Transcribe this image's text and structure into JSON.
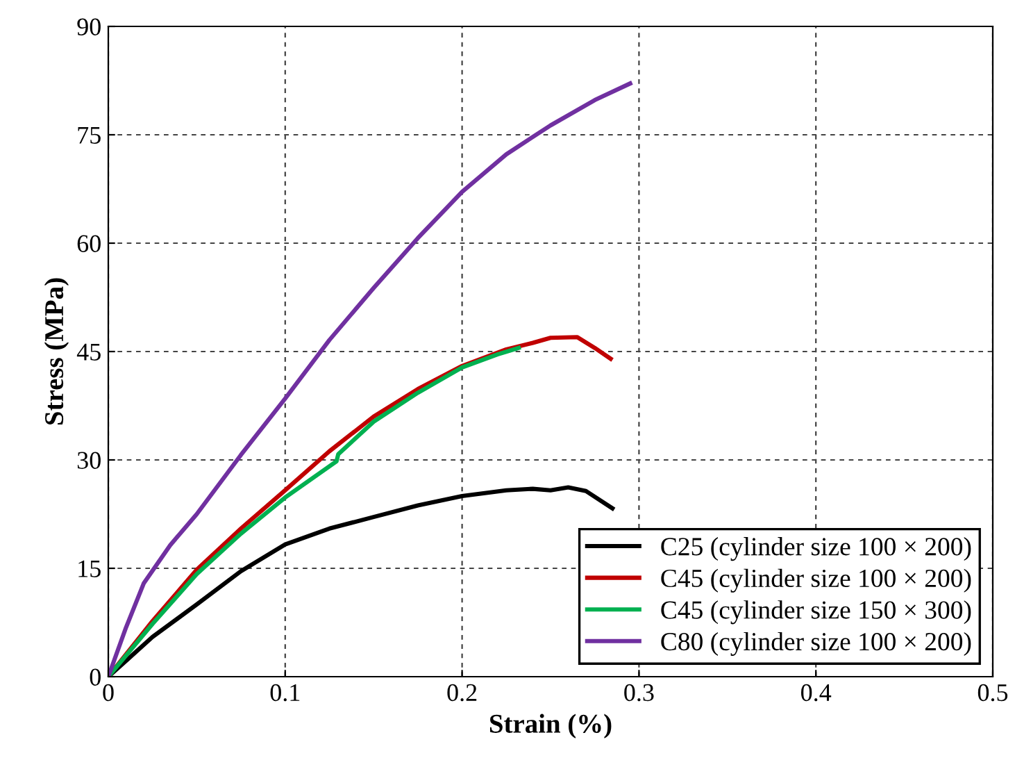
{
  "chart_data": {
    "type": "line",
    "xlabel": "Strain (%)",
    "ylabel": "Stress (MPa)",
    "xlim": [
      0,
      0.5
    ],
    "ylim": [
      0,
      90
    ],
    "xticks": [
      0,
      0.1,
      0.2,
      0.3,
      0.4,
      0.5
    ],
    "yticks": [
      0,
      15,
      30,
      45,
      60,
      75,
      90
    ],
    "grid": true,
    "legend": "bottom right",
    "marker": "none",
    "line_style": "solid",
    "series": [
      {
        "name": "C25 (cylinder size 100 × 200)",
        "color": "#000000",
        "x": [
          0,
          0.01,
          0.025,
          0.05,
          0.075,
          0.1,
          0.125,
          0.15,
          0.175,
          0.2,
          0.225,
          0.24,
          0.25,
          0.26,
          0.27,
          0.285
        ],
        "values": [
          0,
          2.2,
          5.5,
          10,
          14.6,
          18.3,
          20.5,
          22.1,
          23.7,
          25,
          25.8,
          26,
          25.8,
          26.2,
          25.7,
          23.3
        ]
      },
      {
        "name": "C45 (cylinder size 100 × 200)",
        "color": "#c00000",
        "x": [
          0,
          0.025,
          0.05,
          0.075,
          0.1,
          0.125,
          0.15,
          0.175,
          0.2,
          0.225,
          0.24,
          0.25,
          0.265,
          0.275,
          0.284
        ],
        "values": [
          0,
          7.7,
          14.8,
          20.5,
          25.8,
          31.2,
          36,
          39.8,
          43,
          45.3,
          46.2,
          46.9,
          47,
          45.5,
          44
        ]
      },
      {
        "name": "C45 (cylinder size 150 × 300)",
        "color": "#00b050",
        "x": [
          0,
          0.025,
          0.05,
          0.075,
          0.1,
          0.129,
          0.13,
          0.15,
          0.175,
          0.2,
          0.22,
          0.232
        ],
        "values": [
          0,
          7.3,
          14.2,
          19.8,
          24.8,
          29.8,
          30.8,
          35.3,
          39.3,
          42.8,
          44.6,
          45.5
        ]
      },
      {
        "name": "C80 (cylinder size 100 × 200)",
        "color": "#7030a0",
        "x": [
          0,
          0.01,
          0.02,
          0.035,
          0.05,
          0.075,
          0.1,
          0.125,
          0.15,
          0.175,
          0.2,
          0.225,
          0.25,
          0.275,
          0.295
        ],
        "values": [
          0,
          6.8,
          12.9,
          18.2,
          22.5,
          30.7,
          38.5,
          46.6,
          53.8,
          60.7,
          67.1,
          72.3,
          76.3,
          79.8,
          82.1
        ]
      }
    ]
  }
}
